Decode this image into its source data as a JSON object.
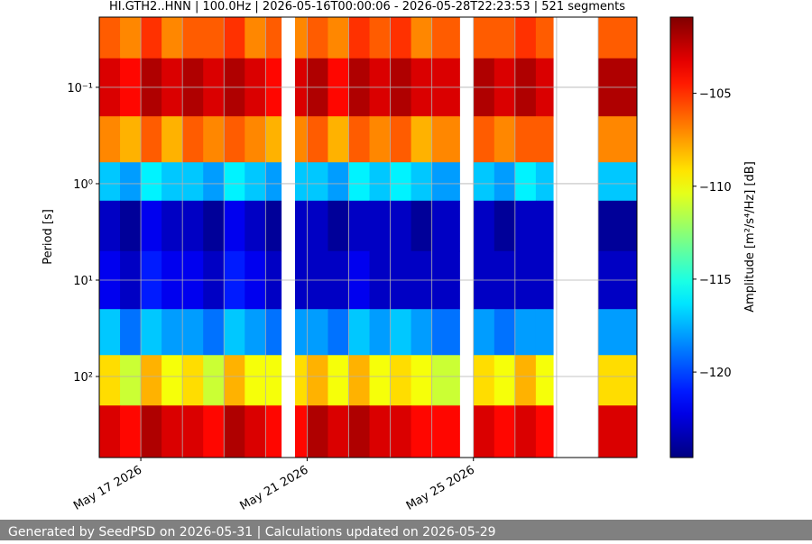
{
  "chart_data": {
    "type": "heatmap",
    "title": "HI.GTH2..HNN | 100.0Hz | 2026-05-16T00:00:06 - 2026-05-28T22:23:53 | 521 segments",
    "ylabel": "Period [s]",
    "colorbar_label": "Amplitude [m²/s⁴/Hz] [dB]",
    "colormap": "jet",
    "ylog": true,
    "yinvert": true,
    "grid": true,
    "x_edges": [
      "2026-05-16T00:00:06",
      "2026-05-16T12:00",
      "2026-05-17T00:00",
      "2026-05-17T12:00",
      "2026-05-18T00:00",
      "2026-05-18T12:00",
      "2026-05-19T00:00",
      "2026-05-19T12:00",
      "2026-05-20T00:00",
      "2026-05-20T09:00",
      "2026-05-20T17:00",
      "2026-05-21T00:00",
      "2026-05-21T12:00",
      "2026-05-22T00:00",
      "2026-05-22T12:00",
      "2026-05-23T00:00",
      "2026-05-23T12:00",
      "2026-05-24T00:00",
      "2026-05-24T16:00",
      "2026-05-25T00:00",
      "2026-05-25T12:00",
      "2026-05-26T00:00",
      "2026-05-26T12:00",
      "2026-05-26T22:00",
      "2026-05-28T00:00",
      "2026-05-28T22:23:53"
    ],
    "y_edges": [
      0.0187,
      0.05,
      0.2,
      0.6,
      1.5,
      5,
      20,
      60,
      200,
      693
    ],
    "values": [
      [
        -106,
        -107,
        -105,
        -107,
        -106,
        -106,
        -105,
        -107,
        -106,
        null,
        -107,
        -106,
        -107,
        -105,
        -106,
        -105,
        -107,
        -106,
        null,
        -106,
        -106,
        -105,
        -106,
        null,
        -106
      ],
      [
        -103,
        -104,
        -102,
        -103,
        -102,
        -103,
        -102,
        -103,
        -104,
        null,
        -103,
        -102,
        -104,
        -102,
        -103,
        -102,
        -103,
        -103,
        null,
        -102,
        -103,
        -102,
        -103,
        null,
        -102
      ],
      [
        -107,
        -108,
        -106,
        -108,
        -106,
        -107,
        -106,
        -107,
        -108,
        null,
        -107,
        -106,
        -108,
        -106,
        -107,
        -106,
        -108,
        -107,
        null,
        -106,
        -107,
        -106,
        -106,
        null,
        -107
      ],
      [
        -117,
        -118,
        -116,
        -117,
        -117,
        -118,
        -116,
        -117,
        -118,
        null,
        -117,
        -117,
        -118,
        -116,
        -117,
        -116,
        -117,
        -118,
        null,
        -117,
        -118,
        -116,
        -117,
        null,
        -117
      ],
      [
        -123,
        -124,
        -122,
        -123,
        -123,
        -124,
        -122,
        -123,
        -124,
        null,
        -123,
        -123,
        -124,
        -123,
        -123,
        -123,
        -124,
        -123,
        null,
        -123,
        -124,
        -123,
        -123,
        null,
        -124
      ],
      [
        -122,
        -123,
        -121,
        -122,
        -122,
        -123,
        -121,
        -122,
        -123,
        null,
        -123,
        -123,
        -123,
        -122,
        -123,
        -123,
        -123,
        -123,
        null,
        -123,
        -123,
        -123,
        -123,
        null,
        -123
      ],
      [
        -117,
        -119,
        -117,
        -118,
        -118,
        -119,
        -117,
        -118,
        -119,
        null,
        -118,
        -118,
        -119,
        -117,
        -118,
        -117,
        -118,
        -119,
        null,
        -118,
        -119,
        -118,
        -118,
        null,
        -118
      ],
      [
        -109,
        -111,
        -108,
        -110,
        -109,
        -111,
        -108,
        -110,
        -110,
        null,
        -109,
        -108,
        -110,
        -108,
        -110,
        -109,
        -110,
        -111,
        null,
        -109,
        -110,
        -108,
        -110,
        null,
        -109
      ],
      [
        -103,
        -104,
        -102,
        -103,
        -103,
        -104,
        -102,
        -103,
        -104,
        null,
        -104,
        -102,
        -103,
        -102,
        -103,
        -103,
        -104,
        -104,
        null,
        -103,
        -104,
        -103,
        -104,
        null,
        -103
      ]
    ],
    "xlim": [
      "2026-05-16T00:00:06",
      "2026-05-28T22:23:53"
    ],
    "xticks": [
      {
        "value": "2026-05-17T00:00",
        "label": "May 17 2026"
      },
      {
        "value": "2026-05-21T00:00",
        "label": "May 21 2026"
      },
      {
        "value": "2026-05-25T00:00",
        "label": "May 25 2026"
      }
    ],
    "xgrid": [
      "2026-05-17T00:00",
      "2026-05-18T00:00",
      "2026-05-19T00:00",
      "2026-05-20T00:00",
      "2026-05-21T00:00",
      "2026-05-22T00:00",
      "2026-05-23T00:00",
      "2026-05-24T00:00",
      "2026-05-25T00:00",
      "2026-05-26T00:00",
      "2026-05-27T00:00",
      "2026-05-28T00:00"
    ],
    "ylim": [
      0.0187,
      693
    ],
    "yticks": [
      {
        "value": 0.1,
        "label": "10⁻¹"
      },
      {
        "value": 1,
        "label": "10⁰"
      },
      {
        "value": 10,
        "label": "10¹"
      },
      {
        "value": 100,
        "label": "10²"
      }
    ],
    "clim": [
      -124.6,
      -100.9
    ],
    "cticks": [
      {
        "value": -120,
        "label": "−120"
      },
      {
        "value": -115,
        "label": "−115"
      },
      {
        "value": -110,
        "label": "−110"
      },
      {
        "value": -105,
        "label": "−105"
      }
    ]
  },
  "footer": "Generated by SeedPSD on 2026-05-31 | Calculations updated on 2026-05-29"
}
